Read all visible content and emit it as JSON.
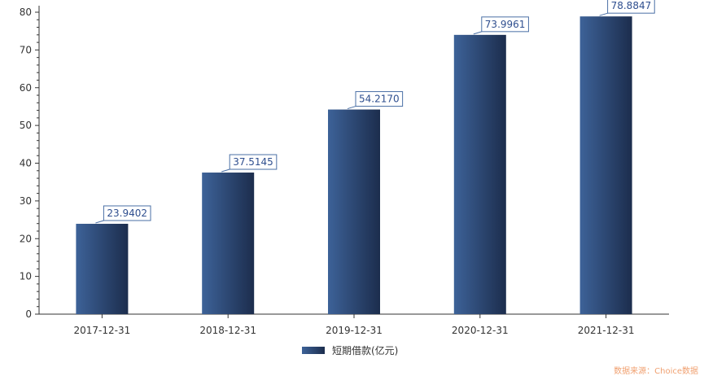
{
  "chart_data": {
    "type": "bar",
    "categories": [
      "2017-12-31",
      "2018-12-31",
      "2019-12-31",
      "2020-12-31",
      "2021-12-31"
    ],
    "series": [
      {
        "name": "短期借款(亿元)",
        "values": [
          23.9402,
          37.5145,
          54.217,
          73.9961,
          78.8847
        ],
        "labels": [
          "23.9402",
          "37.5145",
          "54.2170",
          "73.9961",
          "78.8847"
        ]
      }
    ],
    "y_ticks": [
      "0",
      "10",
      "20",
      "30",
      "40",
      "50",
      "60",
      "70",
      "80"
    ],
    "ylim": [
      0,
      80
    ],
    "grid": false,
    "legend_position": "bottom-center",
    "colors": {
      "bar_light": "#3d6298",
      "bar_dark": "#1c2d4d",
      "label_border": "#4a6fa5",
      "label_text": "#2f4f8f",
      "axis": "#333333"
    }
  },
  "source_note": "数据来源：Choice数据"
}
